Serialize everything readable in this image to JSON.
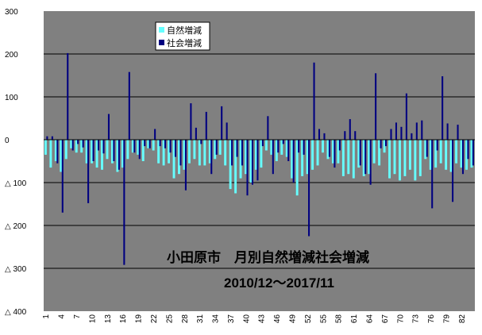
{
  "chart_data": {
    "type": "bar",
    "title": "小田原市　月別自然増減社会増減",
    "subtitle": "2010/12～2017/11",
    "ylim": [
      -400,
      300
    ],
    "y_ticks": [
      {
        "value": 300,
        "label": "300"
      },
      {
        "value": 200,
        "label": "200"
      },
      {
        "value": 100,
        "label": "100"
      },
      {
        "value": 0,
        "label": "0"
      },
      {
        "value": -100,
        "label": "△ 100"
      },
      {
        "value": -200,
        "label": "△ 200"
      },
      {
        "value": -300,
        "label": "△ 300"
      },
      {
        "value": -400,
        "label": "△ 400"
      }
    ],
    "x_tick_labels": [
      "1",
      "4",
      "7",
      "10",
      "13",
      "16",
      "19",
      "22",
      "25",
      "28",
      "31",
      "34",
      "37",
      "40",
      "43",
      "46",
      "49",
      "52",
      "55",
      "58",
      "61",
      "64",
      "67",
      "70",
      "73",
      "76",
      "79",
      "82"
    ],
    "grid": true,
    "legend_position": "top-left",
    "categories": [
      "1",
      "2",
      "3",
      "4",
      "5",
      "6",
      "7",
      "8",
      "9",
      "10",
      "11",
      "12",
      "13",
      "14",
      "15",
      "16",
      "17",
      "18",
      "19",
      "20",
      "21",
      "22",
      "23",
      "24",
      "25",
      "26",
      "27",
      "28",
      "29",
      "30",
      "31",
      "32",
      "33",
      "34",
      "35",
      "36",
      "37",
      "38",
      "39",
      "40",
      "41",
      "42",
      "43",
      "44",
      "45",
      "46",
      "47",
      "48",
      "49",
      "50",
      "51",
      "52",
      "53",
      "54",
      "55",
      "56",
      "57",
      "58",
      "59",
      "60",
      "61",
      "62",
      "63",
      "64",
      "65",
      "66",
      "67",
      "68",
      "69",
      "70",
      "71",
      "72",
      "73",
      "74",
      "75",
      "76",
      "77",
      "78",
      "79",
      "80",
      "81",
      "82",
      "83",
      "84"
    ],
    "series": [
      {
        "name": "自然増減",
        "color": "#66ffff",
        "values": [
          -35,
          -65,
          -50,
          -75,
          -45,
          -20,
          -30,
          -30,
          -55,
          -55,
          -65,
          -70,
          -45,
          -55,
          -75,
          -65,
          -45,
          -30,
          -35,
          -50,
          -20,
          -25,
          -55,
          -60,
          -55,
          -90,
          -80,
          -70,
          -55,
          -45,
          -60,
          -60,
          -55,
          -45,
          -35,
          -60,
          -115,
          -125,
          -90,
          -80,
          -100,
          -70,
          -65,
          -25,
          -35,
          -50,
          -35,
          -40,
          -90,
          -130,
          -85,
          -80,
          -70,
          -60,
          -30,
          -45,
          -55,
          -55,
          -85,
          -80,
          -90,
          -65,
          -85,
          -80,
          -55,
          -60,
          -30,
          -90,
          -80,
          -95,
          -85,
          -70,
          -95,
          -85,
          -45,
          -70,
          -65,
          -55,
          -70,
          -75,
          -55,
          -65,
          -70,
          -65
        ]
      },
      {
        "name": "社会増減",
        "color": "#000080",
        "values": [
          8,
          8,
          -55,
          -170,
          202,
          -25,
          -10,
          -18,
          -148,
          -50,
          -25,
          -32,
          60,
          -50,
          -70,
          -292,
          158,
          -30,
          -45,
          -15,
          -20,
          25,
          -15,
          -20,
          -30,
          -40,
          -60,
          -118,
          85,
          28,
          -10,
          65,
          -80,
          -35,
          78,
          40,
          -60,
          -40,
          -60,
          -130,
          -105,
          -95,
          -15,
          55,
          -80,
          -30,
          -10,
          -50,
          -100,
          -30,
          -35,
          -225,
          180,
          25,
          15,
          -40,
          -65,
          -25,
          20,
          48,
          20,
          -60,
          -80,
          -105,
          155,
          -20,
          -15,
          25,
          40,
          30,
          108,
          15,
          40,
          45,
          -40,
          -160,
          -25,
          148,
          38,
          -145,
          35,
          -80,
          -45,
          -60
        ]
      }
    ]
  }
}
